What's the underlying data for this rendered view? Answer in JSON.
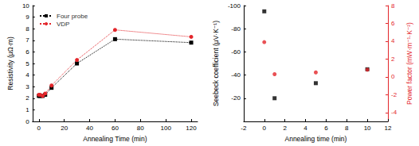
{
  "chart_data": [
    {
      "type": "line",
      "x_label": "Annealing Time (min)",
      "y_label": "Resistivity (μΩ·m)",
      "xlim": [
        -5,
        125
      ],
      "xticks": [
        0,
        20,
        40,
        60,
        80,
        100,
        120
      ],
      "ylim": [
        0,
        10
      ],
      "yticks": [
        0,
        1,
        2,
        3,
        4,
        5,
        6,
        7,
        8,
        9,
        10
      ],
      "grid": false,
      "legend": "upper left",
      "line_style": "dotted",
      "series": [
        {
          "name": "Four probe",
          "color": "#000000",
          "marker": "square",
          "x": [
            0,
            1,
            3,
            5,
            10,
            30,
            60,
            120
          ],
          "values": [
            2.2,
            2.2,
            2.2,
            2.3,
            2.9,
            5.0,
            7.1,
            6.8
          ]
        },
        {
          "name": "VDP",
          "color": "#e3262b",
          "marker": "circle",
          "x": [
            0,
            1,
            3,
            5,
            10,
            30,
            60,
            120
          ],
          "values": [
            2.3,
            2.3,
            2.2,
            2.4,
            3.1,
            5.3,
            7.9,
            7.3
          ]
        }
      ]
    },
    {
      "type": "scatter",
      "x_label": "Annealing time (min)",
      "y_label": "Seebeck coefficient (μV·K⁻¹)",
      "y2_label": "Power factor (mW·m⁻¹·K⁻²)",
      "xlim": [
        -2,
        12
      ],
      "xticks": [
        -2,
        0,
        2,
        4,
        6,
        8,
        10,
        12
      ],
      "ylim": [
        0,
        -100
      ],
      "yticks": [
        -100,
        -80,
        -60,
        -40,
        -20
      ],
      "y2lim": [
        -5,
        8
      ],
      "y2ticks": [
        -4,
        -2,
        0,
        2,
        4,
        6,
        8
      ],
      "grid": false,
      "series": [
        {
          "color": "#000000",
          "marker": "square",
          "x": [
            0,
            1,
            5,
            10
          ],
          "values": [
            -95,
            -20,
            -33,
            -45
          ]
        },
        {
          "color": "#e3262b",
          "marker": "circle",
          "axis": "y2",
          "x": [
            0,
            1,
            5,
            10
          ],
          "values": [
            3.9,
            0.3,
            0.5,
            0.8
          ]
        }
      ]
    }
  ]
}
